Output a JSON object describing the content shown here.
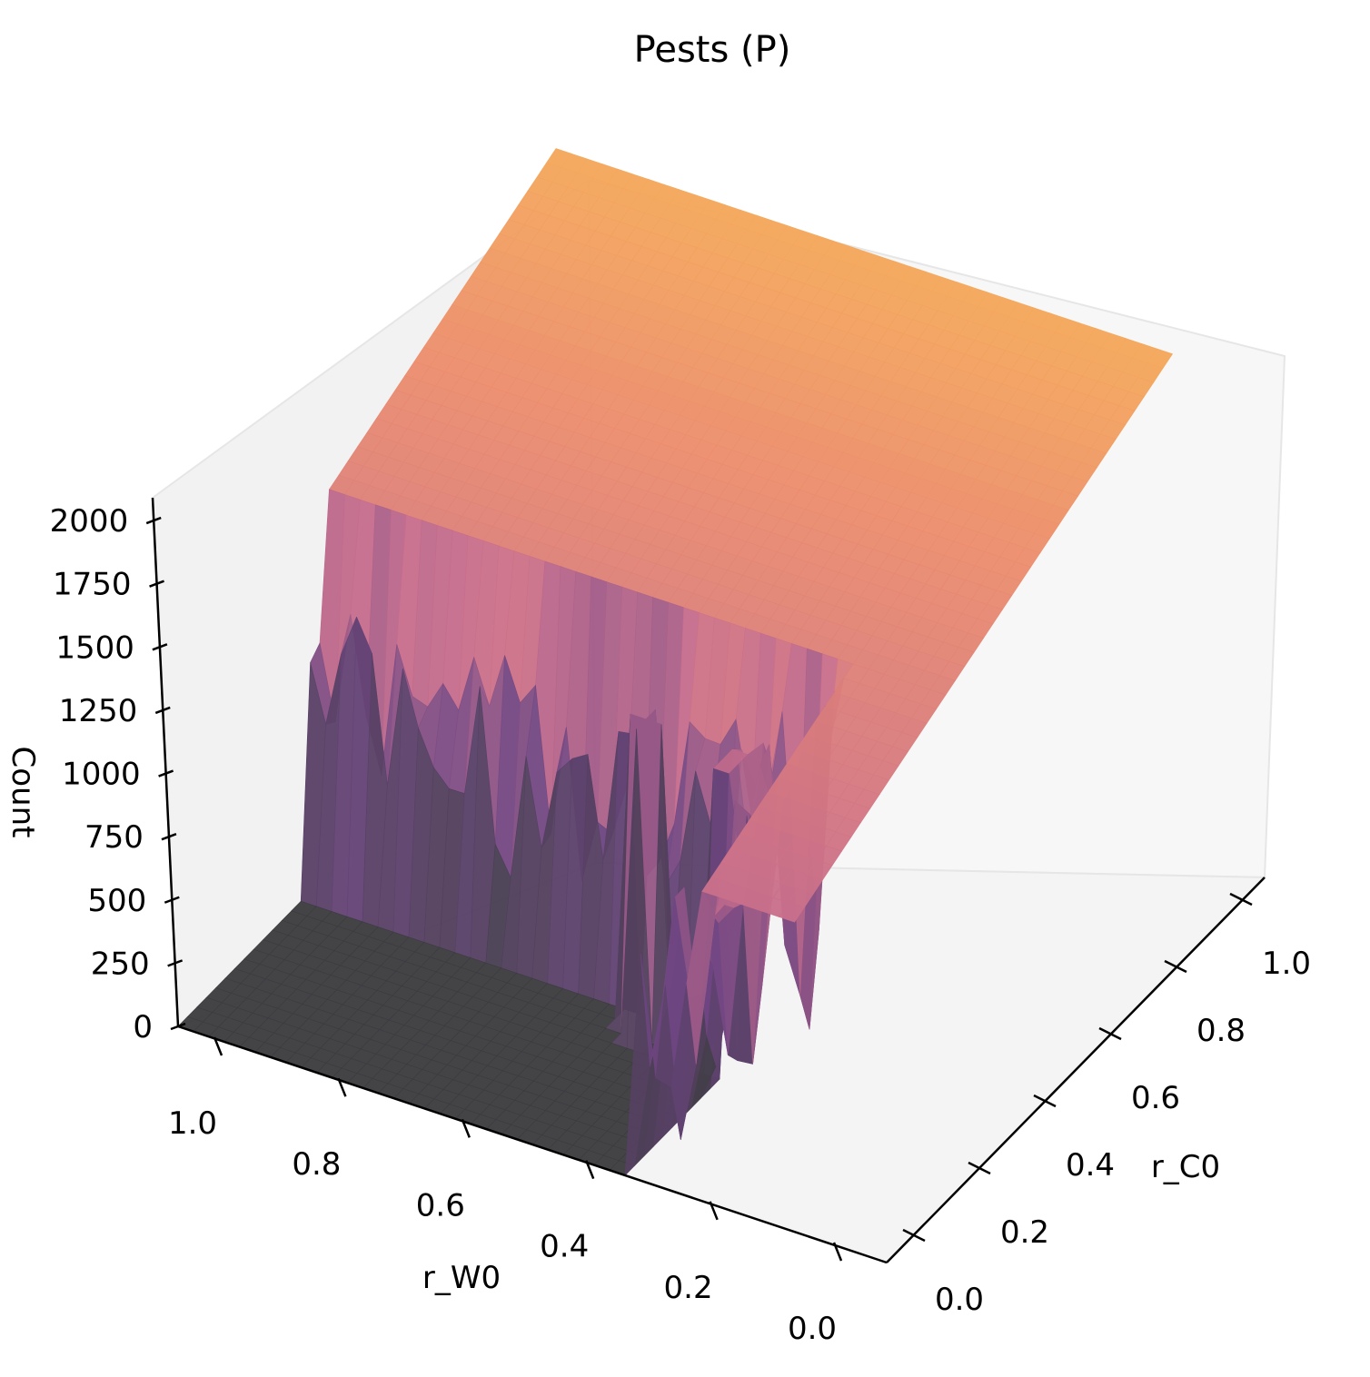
{
  "chart_data": {
    "type": "surface3d",
    "title": "Pests (P)",
    "xlabel": "r_W0",
    "ylabel": "r_C0",
    "zlabel": "Count",
    "xlim": [
      0.0,
      1.0
    ],
    "ylim": [
      0.0,
      1.0
    ],
    "zlim": [
      0,
      2000
    ],
    "x_ticks": [
      "0.0",
      "0.2",
      "0.4",
      "0.6",
      "0.8",
      "1.0"
    ],
    "y_ticks": [
      "0.0",
      "0.2",
      "0.4",
      "0.6",
      "0.8",
      "1.0"
    ],
    "z_ticks": [
      "0",
      "250",
      "500",
      "750",
      "1000",
      "1250",
      "1500",
      "1750",
      "2000"
    ],
    "colormap": "inferno",
    "grid": false,
    "surface_description_values": {
      "plateau_level_low_rC0": 1100,
      "plateau_level_high_rC0": 1750,
      "zero_region_rW0_min": 0.35,
      "zero_region_rC0_max": 0.4,
      "spike_1": {
        "r_W0": 0.5,
        "r_C0": 0.3,
        "count": 1100
      },
      "spike_2": {
        "r_W0": 0.38,
        "r_C0": 0.3,
        "count": 1050
      }
    }
  }
}
